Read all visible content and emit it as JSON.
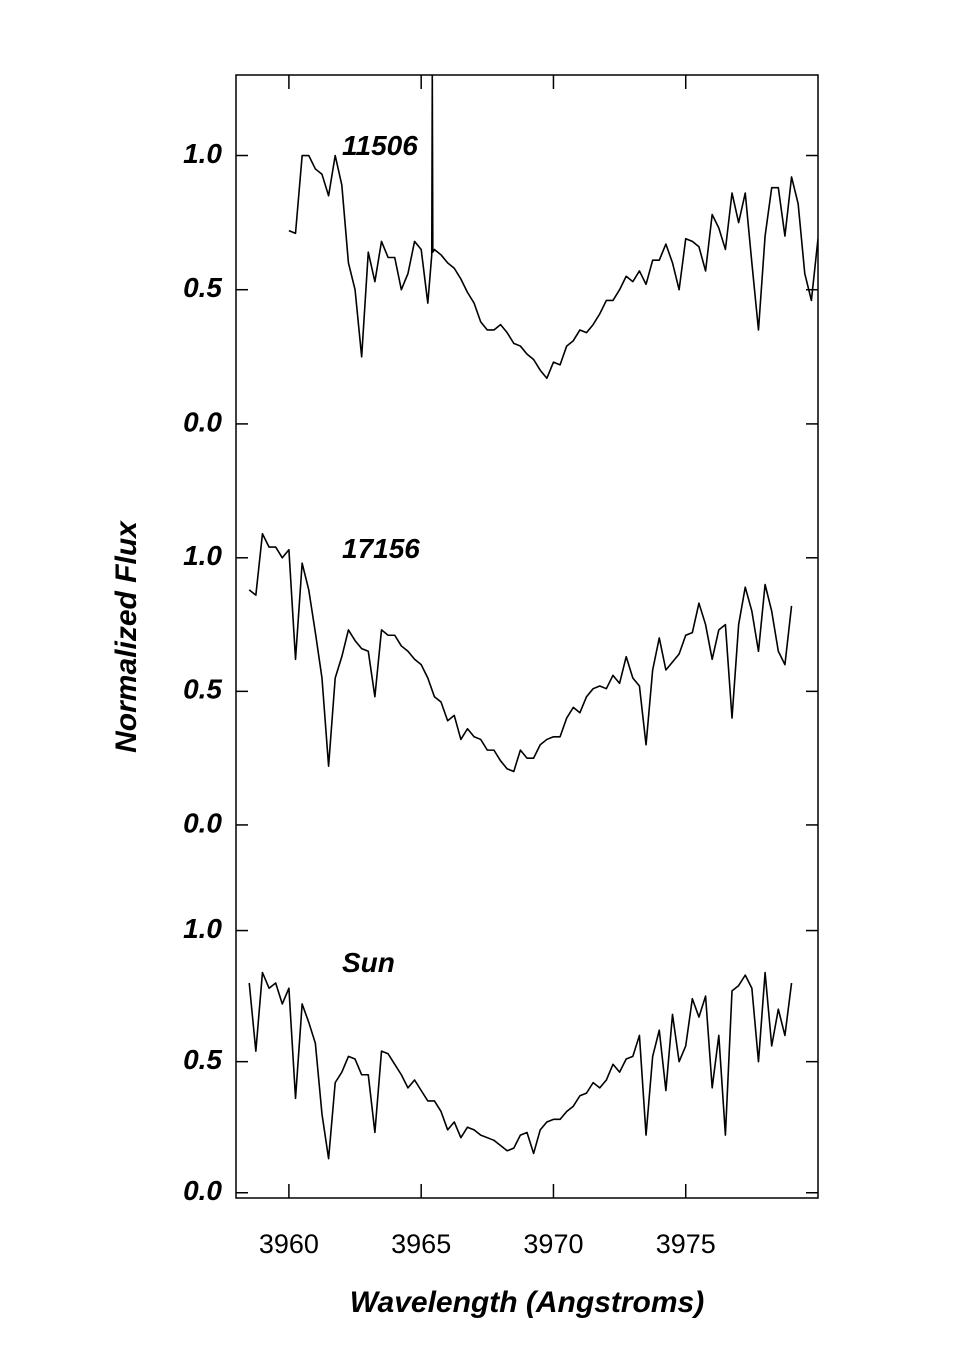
{
  "chart_data": [
    {
      "type": "line",
      "annotation": "11506",
      "color": "#000000",
      "xlim": [
        3958,
        3980
      ],
      "ylim": [
        -0.25,
        1.3
      ],
      "yticks": [
        {
          "value": 0,
          "label": "0.0"
        },
        {
          "value": 0.5,
          "label": "0.5"
        },
        {
          "value": 1,
          "label": "1.0"
        }
      ],
      "x": [
        3960,
        3960.25,
        3960.5,
        3960.75,
        3961,
        3961.25,
        3961.5,
        3961.75,
        3962,
        3962.25,
        3962.5,
        3962.75,
        3963,
        3963.25,
        3963.5,
        3963.75,
        3964,
        3964.25,
        3964.5,
        3964.75,
        3965,
        3965.25,
        3965.4,
        3965.42,
        3965.44,
        3965.5,
        3965.75,
        3966,
        3966.25,
        3966.5,
        3966.75,
        3967,
        3967.25,
        3967.5,
        3967.75,
        3968,
        3968.25,
        3968.5,
        3968.75,
        3969,
        3969.25,
        3969.5,
        3969.75,
        3970,
        3970.25,
        3970.5,
        3970.75,
        3971,
        3971.25,
        3971.5,
        3971.75,
        3972,
        3972.25,
        3972.5,
        3972.75,
        3973,
        3973.25,
        3973.5,
        3973.75,
        3974,
        3974.25,
        3974.5,
        3974.75,
        3975,
        3975.25,
        3975.5,
        3975.75,
        3976,
        3976.25,
        3976.5,
        3976.75,
        3977,
        3977.25,
        3977.5,
        3977.75,
        3978,
        3978.25,
        3978.5,
        3978.75,
        3979,
        3979.25,
        3979.5,
        3979.75,
        3980
      ],
      "values": [
        0.72,
        0.71,
        1.0,
        1.0,
        0.95,
        0.93,
        0.85,
        1.0,
        0.89,
        0.6,
        0.5,
        0.25,
        0.64,
        0.53,
        0.68,
        0.62,
        0.62,
        0.5,
        0.56,
        0.68,
        0.65,
        0.45,
        0.63,
        1.3,
        0.64,
        0.65,
        0.63,
        0.6,
        0.58,
        0.54,
        0.49,
        0.45,
        0.38,
        0.35,
        0.35,
        0.37,
        0.34,
        0.3,
        0.29,
        0.26,
        0.24,
        0.2,
        0.17,
        0.23,
        0.22,
        0.29,
        0.31,
        0.35,
        0.34,
        0.37,
        0.41,
        0.46,
        0.46,
        0.5,
        0.55,
        0.53,
        0.57,
        0.52,
        0.61,
        0.61,
        0.67,
        0.6,
        0.5,
        0.69,
        0.68,
        0.66,
        0.57,
        0.78,
        0.73,
        0.65,
        0.86,
        0.75,
        0.86,
        0.6,
        0.35,
        0.7,
        0.88,
        0.88,
        0.7,
        0.92,
        0.82,
        0.56,
        0.46,
        0.69
      ]
    },
    {
      "type": "line",
      "annotation": "17156",
      "color": "#000000",
      "ylabel": "Normalized Flux",
      "xlim": [
        3958,
        3980
      ],
      "ylim": [
        -0.15,
        1.25
      ],
      "yticks": [
        {
          "value": 0,
          "label": "0.0"
        },
        {
          "value": 0.5,
          "label": "0.5"
        },
        {
          "value": 1,
          "label": "1.0"
        }
      ],
      "x": [
        3958.5,
        3958.75,
        3959,
        3959.25,
        3959.5,
        3959.75,
        3960,
        3960.25,
        3960.5,
        3960.75,
        3961,
        3961.25,
        3961.5,
        3961.75,
        3962,
        3962.25,
        3962.5,
        3962.75,
        3963,
        3963.25,
        3963.5,
        3963.75,
        3964,
        3964.25,
        3964.5,
        3964.75,
        3965,
        3965.25,
        3965.5,
        3965.75,
        3966,
        3966.25,
        3966.5,
        3966.75,
        3967,
        3967.25,
        3967.5,
        3967.75,
        3968,
        3968.25,
        3968.5,
        3968.75,
        3969,
        3969.25,
        3969.5,
        3969.75,
        3970,
        3970.25,
        3970.5,
        3970.75,
        3971,
        3971.25,
        3971.5,
        3971.75,
        3972,
        3972.25,
        3972.5,
        3972.75,
        3973,
        3973.25,
        3973.5,
        3973.75,
        3974,
        3974.25,
        3974.5,
        3974.75,
        3975,
        3975.25,
        3975.5,
        3975.75,
        3976,
        3976.25,
        3976.5,
        3976.75,
        3977,
        3977.25,
        3977.5,
        3977.75,
        3978,
        3978.25,
        3978.5,
        3978.75,
        3979
      ],
      "values": [
        0.88,
        0.86,
        1.09,
        1.04,
        1.04,
        1.0,
        1.03,
        0.62,
        0.98,
        0.88,
        0.72,
        0.55,
        0.22,
        0.55,
        0.63,
        0.73,
        0.69,
        0.66,
        0.65,
        0.48,
        0.73,
        0.71,
        0.71,
        0.67,
        0.65,
        0.62,
        0.6,
        0.55,
        0.48,
        0.46,
        0.39,
        0.41,
        0.32,
        0.36,
        0.33,
        0.32,
        0.28,
        0.28,
        0.24,
        0.21,
        0.2,
        0.28,
        0.25,
        0.25,
        0.3,
        0.32,
        0.33,
        0.33,
        0.4,
        0.44,
        0.42,
        0.48,
        0.51,
        0.52,
        0.51,
        0.56,
        0.53,
        0.63,
        0.55,
        0.52,
        0.3,
        0.58,
        0.7,
        0.58,
        0.61,
        0.64,
        0.71,
        0.72,
        0.83,
        0.75,
        0.62,
        0.73,
        0.75,
        0.4,
        0.75,
        0.89,
        0.8,
        0.65,
        0.9,
        0.8,
        0.65,
        0.6,
        0.82
      ]
    },
    {
      "type": "line",
      "annotation": "Sun",
      "color": "#000000",
      "xlabel": "Wavelength (Angstroms)",
      "xlim": [
        3958,
        3980
      ],
      "ylim": [
        -0.02,
        1.25
      ],
      "xticks": [
        3960,
        3965,
        3970,
        3975
      ],
      "yticks": [
        {
          "value": 0,
          "label": "0.0"
        },
        {
          "value": 0.5,
          "label": "0.5"
        },
        {
          "value": 1,
          "label": "1.0"
        }
      ],
      "x": [
        3958.5,
        3958.75,
        3959,
        3959.25,
        3959.5,
        3959.75,
        3960,
        3960.25,
        3960.5,
        3960.75,
        3961,
        3961.25,
        3961.5,
        3961.75,
        3962,
        3962.25,
        3962.5,
        3962.75,
        3963,
        3963.25,
        3963.5,
        3963.75,
        3964,
        3964.25,
        3964.5,
        3964.75,
        3965,
        3965.25,
        3965.5,
        3965.75,
        3966,
        3966.25,
        3966.5,
        3966.75,
        3967,
        3967.25,
        3967.5,
        3967.75,
        3968,
        3968.25,
        3968.5,
        3968.75,
        3969,
        3969.25,
        3969.5,
        3969.75,
        3970,
        3970.25,
        3970.5,
        3970.75,
        3971,
        3971.25,
        3971.5,
        3971.75,
        3972,
        3972.25,
        3972.5,
        3972.75,
        3973,
        3973.25,
        3973.5,
        3973.75,
        3974,
        3974.25,
        3974.5,
        3974.75,
        3975,
        3975.25,
        3975.5,
        3975.75,
        3976,
        3976.25,
        3976.5,
        3976.75,
        3977,
        3977.25,
        3977.5,
        3977.75,
        3978,
        3978.25,
        3978.5,
        3978.75,
        3979
      ],
      "values": [
        0.8,
        0.54,
        0.84,
        0.78,
        0.8,
        0.72,
        0.78,
        0.36,
        0.72,
        0.65,
        0.57,
        0.3,
        0.13,
        0.42,
        0.46,
        0.52,
        0.51,
        0.45,
        0.45,
        0.23,
        0.54,
        0.53,
        0.49,
        0.45,
        0.4,
        0.43,
        0.39,
        0.35,
        0.35,
        0.31,
        0.24,
        0.27,
        0.21,
        0.25,
        0.24,
        0.22,
        0.21,
        0.2,
        0.18,
        0.16,
        0.17,
        0.22,
        0.23,
        0.15,
        0.24,
        0.27,
        0.28,
        0.28,
        0.31,
        0.33,
        0.37,
        0.38,
        0.42,
        0.4,
        0.43,
        0.49,
        0.46,
        0.51,
        0.52,
        0.6,
        0.22,
        0.52,
        0.62,
        0.39,
        0.68,
        0.5,
        0.56,
        0.74,
        0.67,
        0.75,
        0.4,
        0.6,
        0.22,
        0.77,
        0.79,
        0.83,
        0.78,
        0.5,
        0.84,
        0.56,
        0.7,
        0.6,
        0.8
      ]
    }
  ]
}
